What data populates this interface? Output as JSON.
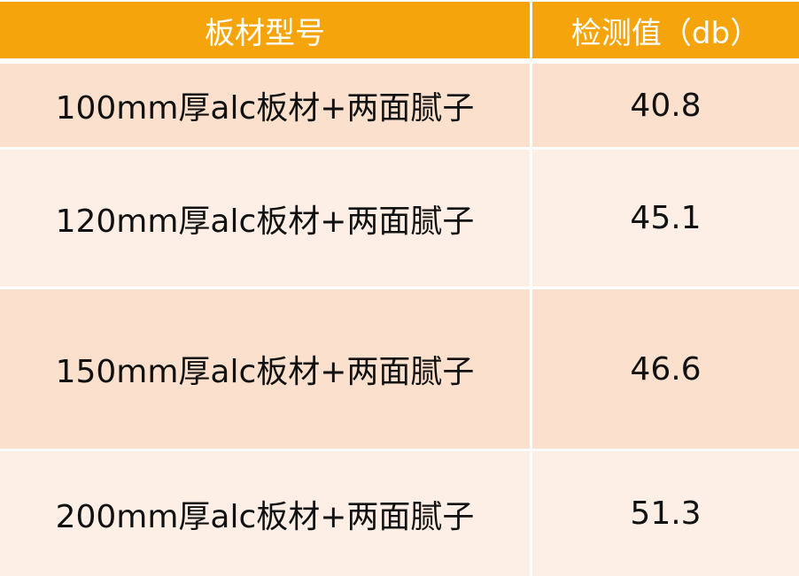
{
  "table": {
    "headers": [
      "板材型号",
      "检测值（db）"
    ],
    "rows": [
      {
        "model": "100mm厚alc板材+两面腻子",
        "value": "40.8"
      },
      {
        "model": "120mm厚alc板材+两面腻子",
        "value": "45.1"
      },
      {
        "model": "150mm厚alc板材+两面腻子",
        "value": "46.6"
      },
      {
        "model": "200mm厚alc板材+两面腻子",
        "value": "51.3"
      }
    ]
  },
  "colors": {
    "header": "#F5A50B",
    "row_dark": "#FBE0CD",
    "row_light": "#FDEFE6"
  }
}
